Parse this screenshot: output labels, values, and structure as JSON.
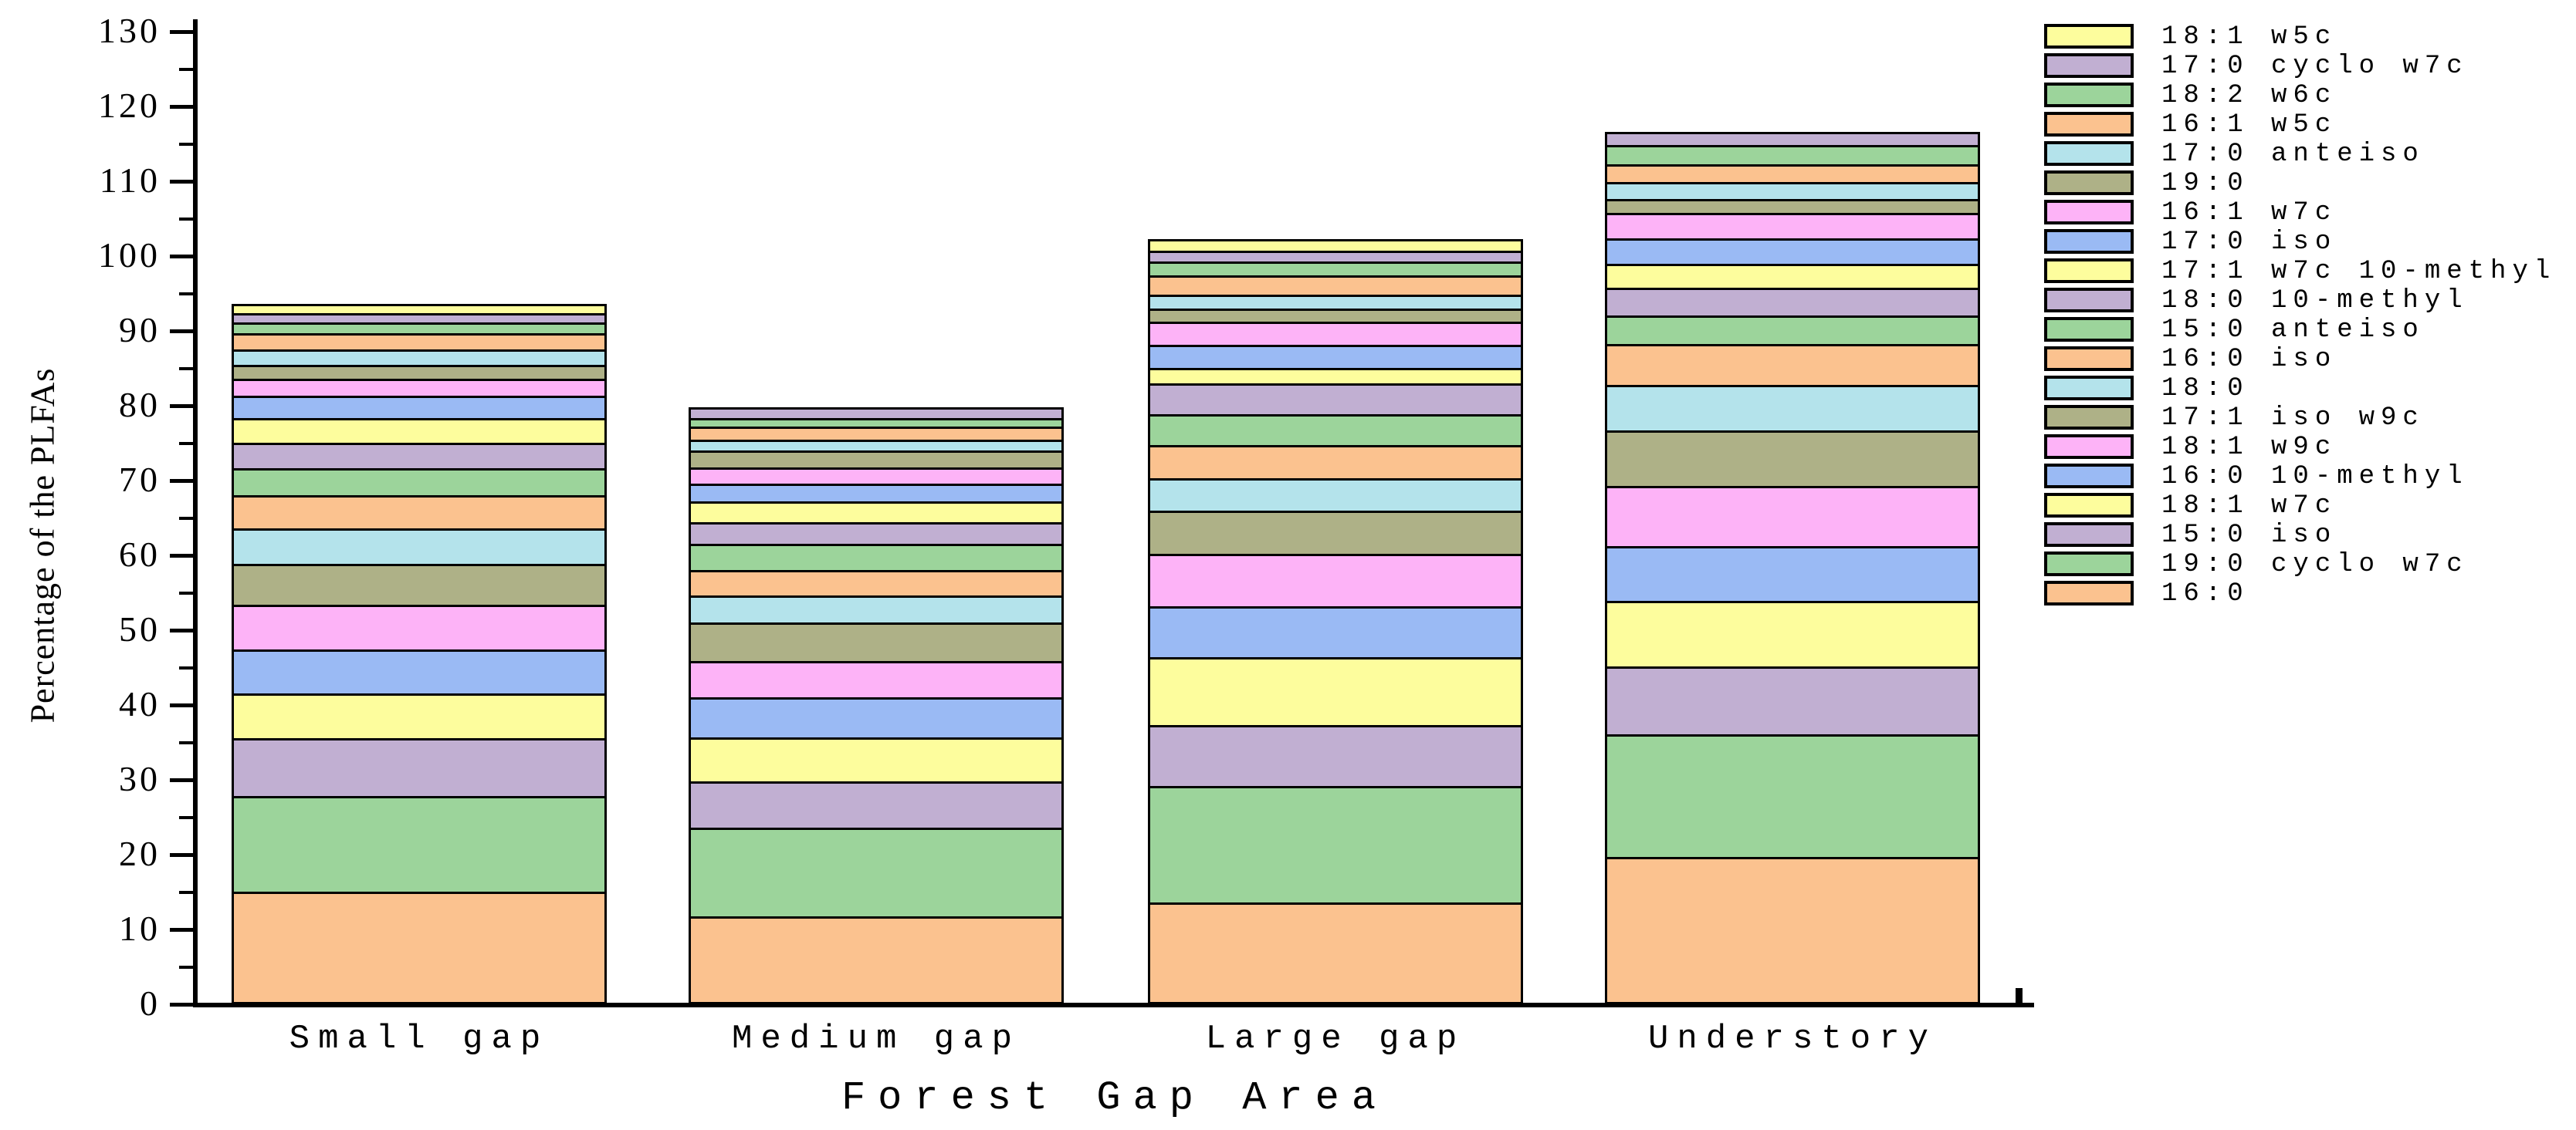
{
  "colors": {
    "orange": "#FBC28F",
    "green": "#9CD49B",
    "purple": "#C1AFD2",
    "yellow": "#FDFD9D",
    "blue": "#9ABAF4",
    "pink": "#FDB3F7",
    "olive": "#AEB187",
    "cyan": "#B4E3EB",
    "axis": "#000000",
    "background": "#FFFFFF"
  },
  "chart_data": {
    "type": "bar",
    "stacked": true,
    "title": "",
    "xlabel": "Forest Gap Area",
    "ylabel": "Percentage of the PLFAs",
    "categories": [
      "Small gap",
      "Medium gap",
      "Large gap",
      "Understory"
    ],
    "ylim": [
      0,
      130
    ],
    "y_major_tick": 10,
    "y_minor_tick": 5,
    "grid": "off",
    "legend_position": "outside-top-right",
    "series": [
      {
        "name": "16:0",
        "color": "orange",
        "values": [
          14.7,
          11.4,
          13.3,
          19.4
        ]
      },
      {
        "name": "19:0 cyclo w7c",
        "color": "green",
        "values": [
          12.8,
          11.9,
          15.6,
          16.4
        ]
      },
      {
        "name": "15:0 iso",
        "color": "purple",
        "values": [
          7.8,
          6.2,
          8.1,
          9.0
        ]
      },
      {
        "name": "18:1 w7c",
        "color": "yellow",
        "values": [
          5.9,
          5.9,
          9.1,
          8.8
        ]
      },
      {
        "name": "16:0 10-methyl",
        "color": "blue",
        "values": [
          5.9,
          5.3,
          6.8,
          7.3
        ]
      },
      {
        "name": "18:1 w9c",
        "color": "pink",
        "values": [
          6.0,
          4.9,
          7.0,
          8.1
        ]
      },
      {
        "name": "17:1 iso w9c",
        "color": "olive",
        "values": [
          5.5,
          5.1,
          5.8,
          7.4
        ]
      },
      {
        "name": "18:0",
        "color": "cyan",
        "values": [
          4.7,
          3.6,
          4.3,
          6.1
        ]
      },
      {
        "name": "16:0 iso",
        "color": "orange",
        "values": [
          4.4,
          3.4,
          4.4,
          5.4
        ]
      },
      {
        "name": "15:0 anteiso",
        "color": "green",
        "values": [
          3.6,
          3.5,
          4.2,
          3.9
        ]
      },
      {
        "name": "18:0 10-methyl",
        "color": "purple",
        "values": [
          3.4,
          2.9,
          4.1,
          3.7
        ]
      },
      {
        "name": "17:1 w7c 10-methyl",
        "color": "yellow",
        "values": [
          3.3,
          2.8,
          2.0,
          3.2
        ]
      },
      {
        "name": "17:0 iso",
        "color": "blue",
        "values": [
          3.0,
          2.4,
          3.1,
          3.4
        ]
      },
      {
        "name": "16:1 w7c",
        "color": "pink",
        "values": [
          2.3,
          2.1,
          3.1,
          3.4
        ]
      },
      {
        "name": "19:0",
        "color": "olive",
        "values": [
          1.9,
          2.3,
          1.8,
          1.8
        ]
      },
      {
        "name": "17:0 anteiso",
        "color": "cyan",
        "values": [
          2.0,
          1.5,
          1.8,
          2.3
        ]
      },
      {
        "name": "16:1 w5c",
        "color": "orange",
        "values": [
          2.2,
          1.7,
          2.6,
          2.4
        ]
      },
      {
        "name": "18:2 w6c",
        "color": "green",
        "values": [
          1.4,
          1.1,
          1.9,
          2.5
        ]
      },
      {
        "name": "17:0 cyclo w7c",
        "color": "purple",
        "values": [
          1.3,
          1.5,
          1.4,
          1.8
        ]
      },
      {
        "name": "18:1 w5c",
        "color": "yellow",
        "values": [
          1.2,
          0,
          1.6,
          0
        ]
      }
    ],
    "legend": [
      {
        "label": "18:1 w5c",
        "color": "yellow"
      },
      {
        "label": "17:0 cyclo w7c",
        "color": "purple"
      },
      {
        "label": "18:2 w6c",
        "color": "green"
      },
      {
        "label": "16:1 w5c",
        "color": "orange"
      },
      {
        "label": "17:0 anteiso",
        "color": "cyan"
      },
      {
        "label": "19:0",
        "color": "olive"
      },
      {
        "label": "16:1 w7c",
        "color": "pink"
      },
      {
        "label": "17:0 iso",
        "color": "blue"
      },
      {
        "label": "17:1 w7c 10-methyl",
        "color": "yellow"
      },
      {
        "label": "18:0 10-methyl",
        "color": "purple"
      },
      {
        "label": "15:0 anteiso",
        "color": "green"
      },
      {
        "label": "16:0 iso",
        "color": "orange"
      },
      {
        "label": "18:0",
        "color": "cyan"
      },
      {
        "label": "17:1 iso w9c",
        "color": "olive"
      },
      {
        "label": "18:1 w9c",
        "color": "pink"
      },
      {
        "label": "16:0 10-methyl",
        "color": "blue"
      },
      {
        "label": "18:1 w7c",
        "color": "yellow"
      },
      {
        "label": "15:0 iso",
        "color": "purple"
      },
      {
        "label": "19:0 cyclo w7c",
        "color": "green"
      },
      {
        "label": "16:0",
        "color": "orange"
      }
    ]
  }
}
